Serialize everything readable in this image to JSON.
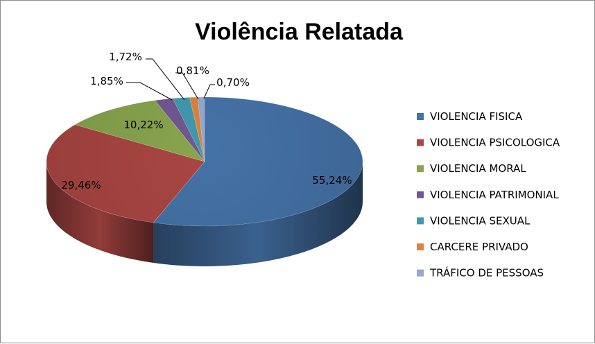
{
  "chart_data": {
    "type": "pie",
    "title": "Violência Relatada",
    "categories": [
      "VIOLENCIA FISICA",
      "VIOLENCIA PSICOLOGICA",
      "VIOLENCIA MORAL",
      "VIOLENCIA PATRIMONIAL",
      "VIOLENCIA SEXUAL",
      "CARCERE PRIVADO",
      "TRÁFICO DE PESSOAS"
    ],
    "values": [
      55.24,
      29.46,
      10.22,
      1.85,
      1.72,
      0.81,
      0.7
    ],
    "value_labels": [
      "55,24%",
      "29,46%",
      "10,22%",
      "1,85%",
      "1,72%",
      "0,81%",
      "0,70%"
    ],
    "colors": [
      "#4572A7",
      "#AA4643",
      "#89A54E",
      "#71588F",
      "#4198AF",
      "#DB843D",
      "#93A9CF"
    ],
    "legend_position": "right",
    "three_d": true
  }
}
